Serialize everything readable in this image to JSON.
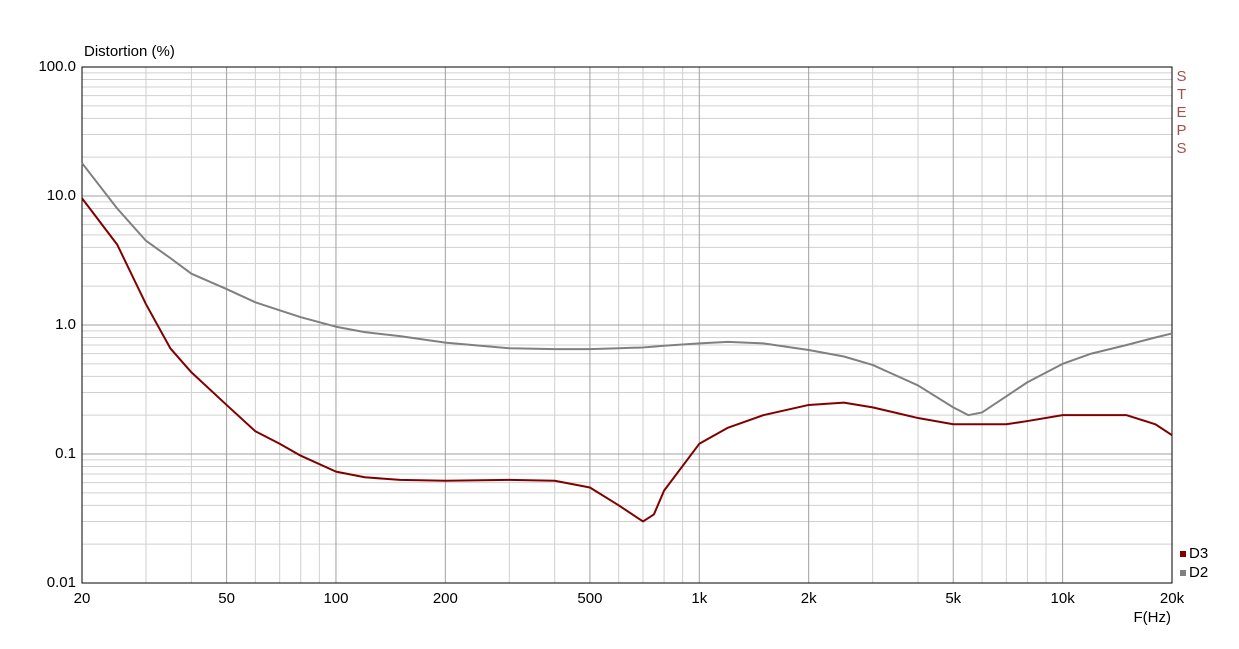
{
  "chart_data": {
    "type": "line",
    "title": "Distortion (%)",
    "x_label": "F(Hz)",
    "watermark": "STEPS",
    "xscale": "log",
    "yscale": "log",
    "grid": true,
    "legend": "bottom-right",
    "xlim": [
      20,
      20000
    ],
    "ylim": [
      0.01,
      100
    ],
    "xticks": [
      20,
      50,
      100,
      200,
      500,
      {
        "value": 1000,
        "label": "1k"
      },
      {
        "value": 2000,
        "label": "2k"
      },
      {
        "value": 5000,
        "label": "5k"
      },
      {
        "value": 10000,
        "label": "10k"
      },
      {
        "value": 20000,
        "label": "20k"
      }
    ],
    "yticks": [
      {
        "value": 100,
        "label": "100.0"
      },
      {
        "value": 10,
        "label": "10.0"
      },
      {
        "value": 1,
        "label": "1.0"
      },
      0.1,
      0.01
    ],
    "x_minor_ticks": [
      30,
      40,
      60,
      70,
      80,
      90,
      300,
      400,
      600,
      700,
      800,
      900,
      3000,
      4000,
      6000,
      7000,
      8000,
      9000
    ],
    "y_minor_ticks": [
      0.02,
      0.03,
      0.04,
      0.05,
      0.06,
      0.07,
      0.08,
      0.09,
      0.2,
      0.3,
      0.4,
      0.5,
      0.6,
      0.7,
      0.8,
      0.9,
      2,
      3,
      4,
      5,
      6,
      7,
      8,
      9,
      20,
      30,
      40,
      50,
      60,
      70,
      80,
      90
    ],
    "x": [
      20,
      25,
      30,
      35,
      40,
      50,
      60,
      70,
      80,
      100,
      120,
      150,
      200,
      300,
      400,
      500,
      600,
      700,
      750,
      800,
      1000,
      1200,
      1500,
      2000,
      2500,
      3000,
      4000,
      5000,
      5500,
      6000,
      7000,
      8000,
      10000,
      12000,
      15000,
      18000,
      20000
    ],
    "series": [
      {
        "name": "D3",
        "color": "#800000",
        "values": [
          9.6,
          4.2,
          1.45,
          0.66,
          0.43,
          0.24,
          0.15,
          0.12,
          0.097,
          0.073,
          0.066,
          0.063,
          0.062,
          0.063,
          0.062,
          0.055,
          0.04,
          0.03,
          0.034,
          0.052,
          0.12,
          0.16,
          0.2,
          0.24,
          0.25,
          0.23,
          0.19,
          0.17,
          0.17,
          0.17,
          0.17,
          0.18,
          0.2,
          0.2,
          0.2,
          0.17,
          0.14
        ]
      },
      {
        "name": "D2",
        "color": "#808080",
        "values": [
          18,
          8,
          4.5,
          3.3,
          2.5,
          1.9,
          1.5,
          1.3,
          1.15,
          0.97,
          0.88,
          0.82,
          0.73,
          0.66,
          0.65,
          0.65,
          0.66,
          0.67,
          0.68,
          0.69,
          0.72,
          0.74,
          0.72,
          0.64,
          0.57,
          0.49,
          0.34,
          0.23,
          0.2,
          0.21,
          0.28,
          0.36,
          0.5,
          0.6,
          0.7,
          0.8,
          0.86
        ]
      }
    ]
  }
}
